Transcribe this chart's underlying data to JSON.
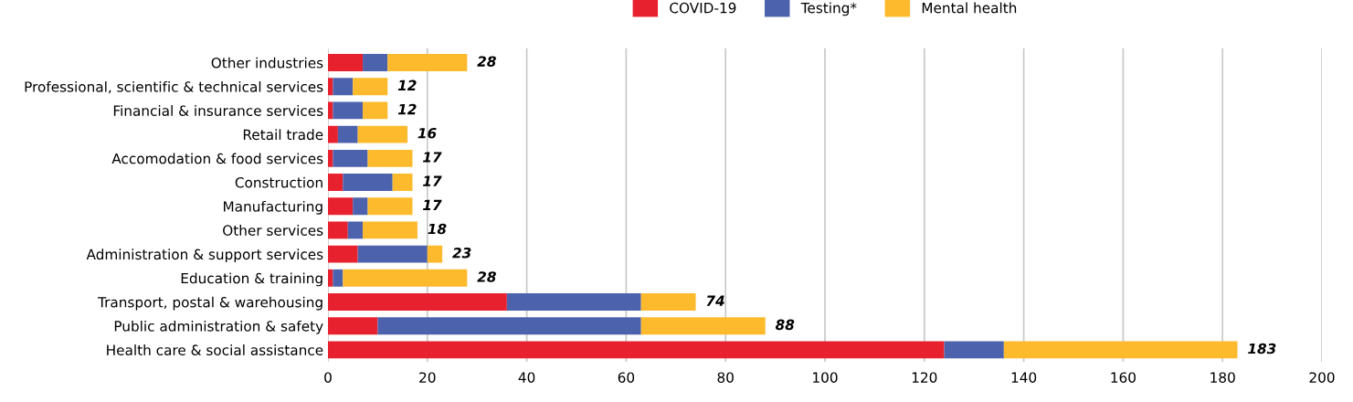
{
  "chart_data": {
    "type": "bar",
    "orientation": "horizontal",
    "stacked": true,
    "categories": [
      "Other industries",
      "Professional, scientific & technical services",
      "Financial & insurance services",
      "Retail trade",
      "Accomodation & food services",
      "Construction",
      "Manufacturing",
      "Other services",
      "Administration & support services",
      "Education & training",
      "Transport, postal & warehousing",
      "Public administration & safety",
      "Health care & social assistance"
    ],
    "series": [
      {
        "name": "COVID-19",
        "color": "#e8212f",
        "values": [
          7,
          1,
          1,
          2,
          1,
          3,
          5,
          4,
          6,
          1,
          36,
          10,
          124
        ]
      },
      {
        "name": "Testing*",
        "color": "#4c62ad",
        "values": [
          5,
          4,
          6,
          4,
          7,
          10,
          3,
          3,
          14,
          2,
          27,
          53,
          12
        ]
      },
      {
        "name": "Mental health",
        "color": "#fdba2c",
        "values": [
          16,
          7,
          5,
          10,
          9,
          4,
          9,
          11,
          3,
          25,
          11,
          25,
          47
        ]
      }
    ],
    "totals": [
      "28",
      "12",
      "12",
      "16",
      "17",
      "17",
      "17",
      "18",
      "23",
      "28",
      "74",
      "88",
      "183"
    ],
    "xlim": [
      0,
      200
    ],
    "xticks": [
      0,
      20,
      40,
      60,
      80,
      100,
      120,
      140,
      160,
      180,
      200
    ],
    "grid": "x",
    "legend": "top"
  }
}
